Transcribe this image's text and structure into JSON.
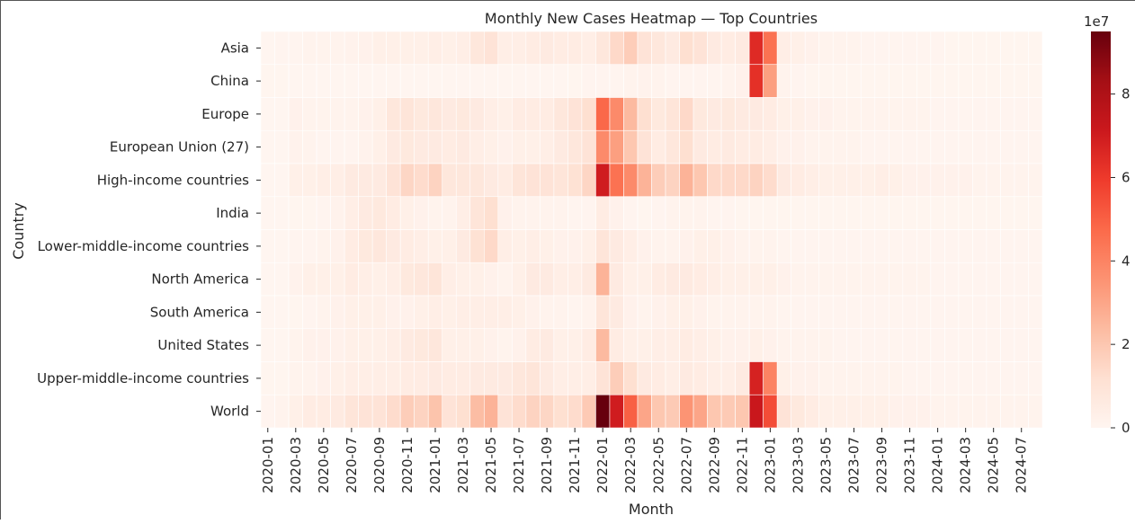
{
  "chart_data": {
    "type": "heatmap",
    "title": "Monthly New Cases Heatmap — Top Countries",
    "xlabel": "Month",
    "ylabel": "Country",
    "colorbar": {
      "exponent_label": "1e7",
      "ticks": [
        0,
        2,
        4,
        6,
        8
      ],
      "min": 0,
      "max": 9.5,
      "scale": "1e7",
      "colormap": "Reds"
    },
    "x_tick_labels": [
      "2020-01",
      "2020-03",
      "2020-05",
      "2020-07",
      "2020-09",
      "2020-11",
      "2021-01",
      "2021-03",
      "2021-05",
      "2021-07",
      "2021-09",
      "2021-11",
      "2022-01",
      "2022-03",
      "2022-05",
      "2022-07",
      "2022-09",
      "2022-11",
      "2023-01",
      "2023-03",
      "2023-05",
      "2023-07",
      "2023-09",
      "2023-11",
      "2024-01",
      "2024-03",
      "2024-05",
      "2024-07"
    ],
    "months": [
      "2020-01",
      "2020-02",
      "2020-03",
      "2020-04",
      "2020-05",
      "2020-06",
      "2020-07",
      "2020-08",
      "2020-09",
      "2020-10",
      "2020-11",
      "2020-12",
      "2021-01",
      "2021-02",
      "2021-03",
      "2021-04",
      "2021-05",
      "2021-06",
      "2021-07",
      "2021-08",
      "2021-09",
      "2021-10",
      "2021-11",
      "2021-12",
      "2022-01",
      "2022-02",
      "2022-03",
      "2022-04",
      "2022-05",
      "2022-06",
      "2022-07",
      "2022-08",
      "2022-09",
      "2022-10",
      "2022-11",
      "2022-12",
      "2023-01",
      "2023-02",
      "2023-03",
      "2023-04",
      "2023-05",
      "2023-06",
      "2023-07",
      "2023-08",
      "2023-09",
      "2023-10",
      "2023-11",
      "2023-12",
      "2024-01",
      "2024-02",
      "2024-03",
      "2024-04",
      "2024-05",
      "2024-06",
      "2024-07",
      "2024-08"
    ],
    "countries": [
      "Asia",
      "China",
      "Europe",
      "European Union (27)",
      "High-income countries",
      "India",
      "Lower-middle-income countries",
      "North America",
      "South America",
      "United States",
      "Upper-middle-income countries",
      "World"
    ],
    "values_1e7": [
      [
        0.0,
        0.05,
        0.05,
        0.1,
        0.1,
        0.1,
        0.15,
        0.2,
        0.3,
        0.3,
        0.3,
        0.3,
        0.4,
        0.3,
        0.4,
        0.8,
        1.0,
        0.4,
        0.4,
        0.5,
        0.6,
        0.5,
        0.5,
        0.4,
        0.8,
        1.4,
        1.8,
        1.0,
        0.8,
        0.6,
        1.2,
        1.0,
        0.6,
        0.5,
        0.6,
        6.5,
        4.5,
        0.4,
        0.3,
        0.2,
        0.1,
        0.1,
        0.1,
        0.05,
        0.05,
        0.05,
        0.05,
        0.05,
        0.05,
        0.02,
        0.02,
        0.02,
        0.02,
        0.02,
        0.02,
        0.02
      ],
      [
        0.02,
        0.02,
        0.0,
        0.0,
        0.0,
        0.0,
        0.0,
        0.0,
        0.0,
        0.0,
        0.0,
        0.0,
        0.0,
        0.0,
        0.0,
        0.0,
        0.0,
        0.0,
        0.0,
        0.0,
        0.0,
        0.0,
        0.02,
        0.05,
        0.05,
        0.05,
        0.1,
        0.15,
        0.1,
        0.05,
        0.05,
        0.05,
        0.05,
        0.1,
        0.2,
        6.3,
        3.2,
        0.1,
        0.05,
        0.02,
        0.02,
        0.02,
        0.02,
        0.02,
        0.02,
        0.02,
        0.02,
        0.02,
        0.02,
        0.02,
        0.02,
        0.02,
        0.02,
        0.02,
        0.02,
        0.02
      ],
      [
        0.0,
        0.0,
        0.2,
        0.1,
        0.1,
        0.1,
        0.1,
        0.2,
        0.3,
        0.8,
        0.9,
        0.7,
        0.8,
        0.6,
        0.7,
        0.6,
        0.4,
        0.3,
        0.5,
        0.5,
        0.5,
        0.8,
        1.0,
        1.2,
        4.8,
        3.8,
        2.4,
        1.2,
        0.7,
        0.9,
        1.4,
        0.7,
        0.6,
        0.7,
        0.6,
        0.6,
        0.5,
        0.3,
        0.3,
        0.2,
        0.2,
        0.1,
        0.1,
        0.1,
        0.1,
        0.1,
        0.1,
        0.1,
        0.05,
        0.05,
        0.05,
        0.05,
        0.05,
        0.05,
        0.05,
        0.05
      ],
      [
        0.0,
        0.0,
        0.15,
        0.1,
        0.05,
        0.05,
        0.05,
        0.15,
        0.3,
        0.6,
        0.7,
        0.6,
        0.6,
        0.5,
        0.6,
        0.4,
        0.3,
        0.2,
        0.3,
        0.3,
        0.4,
        0.6,
        0.8,
        1.0,
        3.8,
        3.2,
        2.0,
        1.0,
        0.5,
        0.8,
        1.2,
        0.6,
        0.5,
        0.6,
        0.5,
        0.5,
        0.4,
        0.2,
        0.2,
        0.1,
        0.1,
        0.1,
        0.1,
        0.05,
        0.05,
        0.05,
        0.05,
        0.05,
        0.05,
        0.05,
        0.05,
        0.05,
        0.05,
        0.05,
        0.05,
        0.05
      ],
      [
        0.0,
        0.0,
        0.3,
        0.3,
        0.4,
        0.4,
        0.6,
        0.6,
        0.6,
        1.0,
        1.5,
        1.3,
        1.6,
        0.8,
        0.8,
        0.8,
        0.6,
        0.5,
        0.9,
        1.0,
        1.0,
        0.9,
        1.1,
        1.5,
        7.0,
        4.5,
        3.8,
        2.6,
        1.8,
        1.6,
        2.6,
        2.0,
        1.4,
        1.4,
        1.4,
        1.6,
        1.3,
        0.6,
        0.5,
        0.4,
        0.3,
        0.3,
        0.3,
        0.3,
        0.4,
        0.3,
        0.2,
        0.2,
        0.2,
        0.2,
        0.2,
        0.1,
        0.1,
        0.1,
        0.1,
        0.1
      ],
      [
        0.0,
        0.0,
        0.02,
        0.02,
        0.05,
        0.15,
        0.4,
        0.6,
        0.7,
        0.5,
        0.3,
        0.2,
        0.1,
        0.1,
        0.4,
        0.9,
        1.2,
        0.2,
        0.1,
        0.1,
        0.1,
        0.1,
        0.05,
        0.05,
        0.5,
        0.2,
        0.05,
        0.02,
        0.05,
        0.1,
        0.1,
        0.1,
        0.05,
        0.05,
        0.02,
        0.02,
        0.02,
        0.02,
        0.02,
        0.02,
        0.02,
        0.02,
        0.02,
        0.02,
        0.02,
        0.02,
        0.02,
        0.02,
        0.02,
        0.02,
        0.02,
        0.02,
        0.02,
        0.02,
        0.02,
        0.02
      ],
      [
        0.0,
        0.0,
        0.05,
        0.05,
        0.1,
        0.2,
        0.5,
        0.7,
        0.8,
        0.6,
        0.5,
        0.4,
        0.3,
        0.3,
        0.6,
        1.1,
        1.4,
        0.4,
        0.3,
        0.4,
        0.3,
        0.2,
        0.2,
        0.3,
        0.9,
        0.6,
        0.4,
        0.2,
        0.1,
        0.1,
        0.2,
        0.3,
        0.3,
        0.2,
        0.1,
        0.1,
        0.1,
        0.05,
        0.05,
        0.05,
        0.05,
        0.05,
        0.05,
        0.05,
        0.05,
        0.05,
        0.05,
        0.05,
        0.05,
        0.05,
        0.05,
        0.05,
        0.05,
        0.05,
        0.05,
        0.05
      ],
      [
        0.0,
        0.0,
        0.15,
        0.3,
        0.3,
        0.3,
        0.5,
        0.4,
        0.3,
        0.4,
        0.7,
        0.8,
        0.9,
        0.4,
        0.3,
        0.3,
        0.2,
        0.1,
        0.3,
        0.6,
        0.6,
        0.4,
        0.4,
        0.6,
        2.6,
        0.6,
        0.3,
        0.3,
        0.5,
        0.6,
        0.6,
        0.5,
        0.4,
        0.3,
        0.3,
        0.3,
        0.3,
        0.2,
        0.1,
        0.1,
        0.1,
        0.1,
        0.1,
        0.1,
        0.1,
        0.1,
        0.1,
        0.1,
        0.05,
        0.05,
        0.05,
        0.05,
        0.05,
        0.05,
        0.05,
        0.05
      ],
      [
        0.0,
        0.0,
        0.02,
        0.05,
        0.1,
        0.2,
        0.3,
        0.3,
        0.3,
        0.2,
        0.2,
        0.3,
        0.4,
        0.3,
        0.4,
        0.4,
        0.4,
        0.4,
        0.3,
        0.2,
        0.1,
        0.1,
        0.05,
        0.1,
        0.9,
        0.6,
        0.2,
        0.1,
        0.2,
        0.3,
        0.3,
        0.2,
        0.1,
        0.1,
        0.1,
        0.1,
        0.1,
        0.05,
        0.05,
        0.05,
        0.05,
        0.05,
        0.05,
        0.05,
        0.05,
        0.05,
        0.05,
        0.05,
        0.05,
        0.05,
        0.05,
        0.05,
        0.05,
        0.05,
        0.05,
        0.05
      ],
      [
        0.0,
        0.0,
        0.1,
        0.2,
        0.2,
        0.2,
        0.3,
        0.3,
        0.3,
        0.4,
        0.6,
        0.7,
        0.8,
        0.3,
        0.3,
        0.3,
        0.2,
        0.1,
        0.2,
        0.5,
        0.6,
        0.3,
        0.3,
        0.5,
        2.4,
        0.5,
        0.3,
        0.3,
        0.4,
        0.4,
        0.5,
        0.4,
        0.3,
        0.2,
        0.2,
        0.3,
        0.2,
        0.1,
        0.1,
        0.1,
        0.1,
        0.05,
        0.05,
        0.05,
        0.05,
        0.05,
        0.05,
        0.05,
        0.05,
        0.05,
        0.05,
        0.05,
        0.05,
        0.05,
        0.05,
        0.05
      ],
      [
        0.02,
        0.02,
        0.1,
        0.1,
        0.2,
        0.3,
        0.4,
        0.4,
        0.4,
        0.4,
        0.5,
        0.5,
        0.6,
        0.5,
        0.5,
        0.6,
        0.6,
        0.6,
        0.8,
        0.9,
        0.6,
        0.4,
        0.4,
        0.4,
        1.0,
        1.8,
        1.2,
        0.6,
        0.5,
        0.4,
        0.6,
        0.5,
        0.4,
        0.4,
        0.6,
        6.8,
        4.0,
        0.3,
        0.2,
        0.2,
        0.1,
        0.1,
        0.1,
        0.1,
        0.1,
        0.1,
        0.05,
        0.05,
        0.05,
        0.05,
        0.05,
        0.05,
        0.05,
        0.05,
        0.05,
        0.05
      ],
      [
        0.05,
        0.1,
        0.3,
        0.5,
        0.5,
        0.6,
        0.9,
        1.0,
        1.0,
        1.3,
        1.8,
        1.6,
        2.1,
        1.0,
        1.2,
        2.3,
        2.6,
        1.0,
        1.3,
        1.6,
        1.5,
        1.2,
        1.3,
        1.9,
        9.5,
        7.0,
        5.0,
        3.0,
        2.0,
        1.9,
        3.5,
        3.0,
        2.0,
        1.9,
        2.0,
        7.2,
        5.5,
        1.0,
        0.7,
        0.5,
        0.3,
        0.3,
        0.3,
        0.3,
        0.3,
        0.2,
        0.2,
        0.2,
        0.1,
        0.1,
        0.1,
        0.1,
        0.1,
        0.1,
        0.1,
        0.1
      ]
    ]
  }
}
